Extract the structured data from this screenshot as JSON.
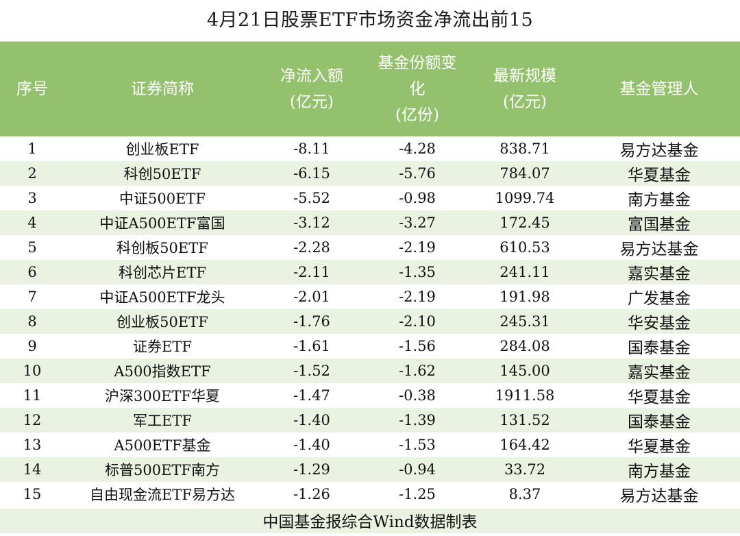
{
  "title": "4月21日股票ETF市场资金净流出前15",
  "headers": {
    "rank": "序号",
    "name": "证券简称",
    "netflow_l1": "净流入额",
    "netflow_l2": "(亿元)",
    "share_l1": "基金份额变",
    "share_l2": "化",
    "share_l3": "(亿份)",
    "size_l1": "最新规模",
    "size_l2": "(亿元)",
    "manager": "基金管理人"
  },
  "rows": [
    {
      "rank": "1",
      "name": "创业板ETF",
      "netflow": "-8.11",
      "share": "-4.28",
      "size": "838.71",
      "manager": "易方达基金"
    },
    {
      "rank": "2",
      "name": "科创50ETF",
      "netflow": "-6.15",
      "share": "-5.76",
      "size": "784.07",
      "manager": "华夏基金"
    },
    {
      "rank": "3",
      "name": "中证500ETF",
      "netflow": "-5.52",
      "share": "-0.98",
      "size": "1099.74",
      "manager": "南方基金"
    },
    {
      "rank": "4",
      "name": "中证A500ETF富国",
      "netflow": "-3.12",
      "share": "-3.27",
      "size": "172.45",
      "manager": "富国基金"
    },
    {
      "rank": "5",
      "name": "科创板50ETF",
      "netflow": "-2.28",
      "share": "-2.19",
      "size": "610.53",
      "manager": "易方达基金"
    },
    {
      "rank": "6",
      "name": "科创芯片ETF",
      "netflow": "-2.11",
      "share": "-1.35",
      "size": "241.11",
      "manager": "嘉实基金"
    },
    {
      "rank": "7",
      "name": "中证A500ETF龙头",
      "netflow": "-2.01",
      "share": "-2.19",
      "size": "191.98",
      "manager": "广发基金"
    },
    {
      "rank": "8",
      "name": "创业板50ETF",
      "netflow": "-1.76",
      "share": "-2.10",
      "size": "245.31",
      "manager": "华安基金"
    },
    {
      "rank": "9",
      "name": "证券ETF",
      "netflow": "-1.61",
      "share": "-1.56",
      "size": "284.08",
      "manager": "国泰基金"
    },
    {
      "rank": "10",
      "name": "A500指数ETF",
      "netflow": "-1.52",
      "share": "-1.62",
      "size": "145.00",
      "manager": "嘉实基金"
    },
    {
      "rank": "11",
      "name": "沪深300ETF华夏",
      "netflow": "-1.47",
      "share": "-0.38",
      "size": "1911.58",
      "manager": "华夏基金"
    },
    {
      "rank": "12",
      "name": "军工ETF",
      "netflow": "-1.40",
      "share": "-1.39",
      "size": "131.52",
      "manager": "国泰基金"
    },
    {
      "rank": "13",
      "name": "A500ETF基金",
      "netflow": "-1.40",
      "share": "-1.53",
      "size": "164.42",
      "manager": "华夏基金"
    },
    {
      "rank": "14",
      "name": "标普500ETF南方",
      "netflow": "-1.29",
      "share": "-0.94",
      "size": "33.72",
      "manager": "南方基金"
    },
    {
      "rank": "15",
      "name": "自由现金流ETF易方达",
      "netflow": "-1.26",
      "share": "-1.25",
      "size": "8.37",
      "manager": "易方达基金"
    }
  ],
  "footer": "中国基金报综合Wind数据制表",
  "colors": {
    "header_bg": "#94c16e",
    "stripe_bg": "#eaf3e1"
  }
}
